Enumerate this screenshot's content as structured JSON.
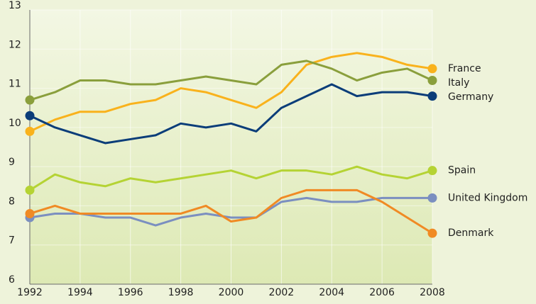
{
  "chart_data": {
    "type": "line",
    "x": [
      1992,
      1993,
      1994,
      1995,
      1996,
      1997,
      1998,
      1999,
      2000,
      2001,
      2002,
      2003,
      2004,
      2005,
      2006,
      2007,
      2008
    ],
    "series": [
      {
        "name": "France",
        "color": "#f9b21c",
        "values": [
          9.9,
          10.2,
          10.4,
          10.4,
          10.6,
          10.7,
          11.0,
          10.9,
          10.7,
          10.5,
          10.9,
          11.6,
          11.8,
          11.9,
          11.8,
          11.6,
          11.5
        ]
      },
      {
        "name": "Italy",
        "color": "#8a9f3c",
        "values": [
          10.7,
          10.9,
          11.2,
          11.2,
          11.1,
          11.1,
          11.2,
          11.3,
          11.2,
          11.1,
          11.6,
          11.7,
          11.5,
          11.2,
          11.4,
          11.5,
          11.2
        ]
      },
      {
        "name": "Germany",
        "color": "#0b3d79",
        "values": [
          10.3,
          10.0,
          9.8,
          9.6,
          9.7,
          9.8,
          10.1,
          10.0,
          10.1,
          9.9,
          10.5,
          10.8,
          11.1,
          10.8,
          10.9,
          10.9,
          10.8
        ]
      },
      {
        "name": "Spain",
        "color": "#b5d334",
        "values": [
          8.4,
          8.8,
          8.6,
          8.5,
          8.7,
          8.6,
          8.7,
          8.8,
          8.9,
          8.7,
          8.9,
          8.9,
          8.8,
          9.0,
          8.8,
          8.7,
          8.9
        ]
      },
      {
        "name": "United Kingdom",
        "color": "#7b8fc0",
        "values": [
          7.7,
          7.8,
          7.8,
          7.7,
          7.7,
          7.5,
          7.7,
          7.8,
          7.7,
          7.7,
          8.1,
          8.2,
          8.1,
          8.1,
          8.2,
          8.2,
          8.2
        ]
      },
      {
        "name": "Denmark",
        "color": "#f08a24",
        "values": [
          7.8,
          8.0,
          7.8,
          7.8,
          7.8,
          7.8,
          7.8,
          8.0,
          7.6,
          7.7,
          8.2,
          8.4,
          8.4,
          8.4,
          8.1,
          7.7,
          7.3
        ]
      }
    ],
    "xlim": [
      1992,
      2008
    ],
    "xticks": [
      1992,
      1994,
      1996,
      1998,
      2000,
      2002,
      2004,
      2006,
      2008
    ],
    "ylim": [
      6,
      13
    ],
    "yticks": [
      6,
      7,
      8,
      9,
      10,
      11,
      12,
      13
    ],
    "grid": true
  }
}
